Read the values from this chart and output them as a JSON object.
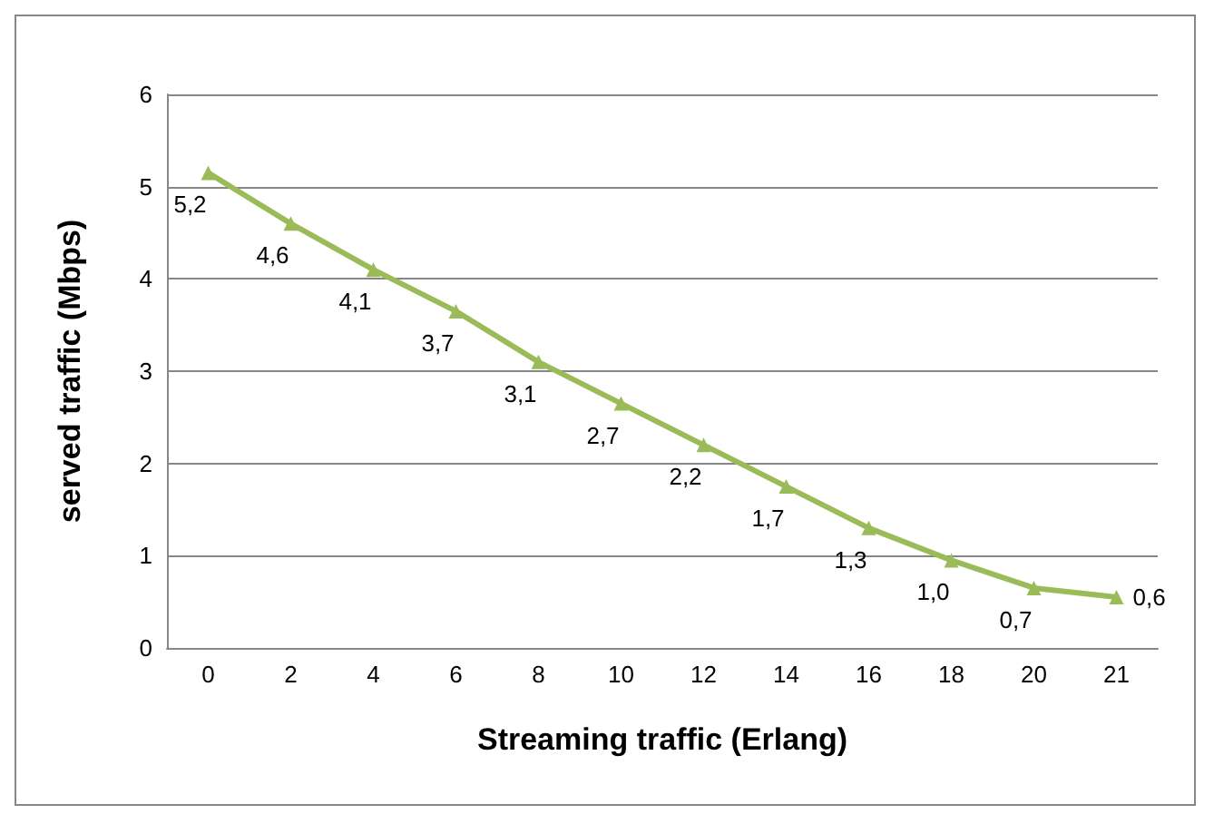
{
  "chart_data": {
    "type": "line",
    "xlabel": "Streaming traffic (Erlang)",
    "ylabel": "served traffic (Mbps)",
    "categories": [
      "0",
      "2",
      "4",
      "6",
      "8",
      "10",
      "12",
      "14",
      "16",
      "18",
      "20",
      "21"
    ],
    "series": [
      {
        "color": "#9bbb59",
        "values": [
          5.15,
          4.6,
          4.1,
          3.65,
          3.1,
          2.65,
          2.2,
          1.75,
          1.3,
          0.95,
          0.65,
          0.55
        ],
        "value_labels": [
          "5,2",
          "4,6",
          "4,1",
          "3,7",
          "3,1",
          "2,7",
          "2,2",
          "1,7",
          "1,3",
          "1,0",
          "0,7",
          "0,6"
        ]
      }
    ],
    "ylim": [
      0,
      6
    ],
    "yticks": [
      0,
      1,
      2,
      3,
      4,
      5,
      6
    ],
    "grid": "y",
    "legend": false,
    "marker": "triangle",
    "line_style": "solid"
  }
}
